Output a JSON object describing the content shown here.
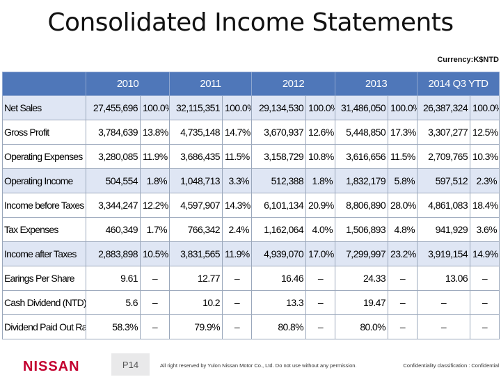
{
  "title": "Consolidated Income Statements",
  "currency": "Currency:K$NTD",
  "columns": [
    "2010",
    "2011",
    "2012",
    "2013",
    "2014 Q3 YTD"
  ],
  "rows": [
    {
      "label": "Net Sales",
      "cells": [
        "27,455,696",
        "100.0%",
        "32,115,351",
        "100.0%",
        "29,134,530",
        "100.0%",
        "31,486,050",
        "100.0%",
        "26,387,324",
        "100.0%"
      ]
    },
    {
      "label": "Gross Profit",
      "cells": [
        "3,784,639",
        "13.8%",
        "4,735,148",
        "14.7%",
        "3,670,937",
        "12.6%",
        "5,448,850",
        "17.3%",
        "3,307,277",
        "12.5%"
      ]
    },
    {
      "label": "Operating Expenses",
      "cells": [
        "3,280,085",
        "11.9%",
        "3,686,435",
        "11.5%",
        "3,158,729",
        "10.8%",
        "3,616,656",
        "11.5%",
        "2,709,765",
        "10.3%"
      ]
    },
    {
      "label": "Operating Income",
      "cells": [
        "504,554",
        "1.8%",
        "1,048,713",
        "3.3%",
        "512,388",
        "1.8%",
        "1,832,179",
        "5.8%",
        "597,512",
        "2.3%"
      ]
    },
    {
      "label": "Income before Taxes",
      "cells": [
        "3,344,247",
        "12.2%",
        "4,597,907",
        "14.3%",
        "6,101,134",
        "20.9%",
        "8,806,890",
        "28.0%",
        "4,861,083",
        "18.4%"
      ]
    },
    {
      "label": "Tax Expenses",
      "cells": [
        "460,349",
        "1.7%",
        "766,342",
        "2.4%",
        "1,162,064",
        "4.0%",
        "1,506,893",
        "4.8%",
        "941,929",
        "3.6%"
      ]
    },
    {
      "label": "Income after Taxes",
      "cells": [
        "2,883,898",
        "10.5%",
        "3,831,565",
        "11.9%",
        "4,939,070",
        "17.0%",
        "7,299,997",
        "23.2%",
        "3,919,154",
        "14.9%"
      ]
    },
    {
      "label": "Earings Per Share",
      "cells": [
        "9.61",
        "–",
        "12.77",
        "–",
        "16.46",
        "–",
        "24.33",
        "–",
        "13.06",
        "–"
      ]
    },
    {
      "label": "Cash Dividend (NTD)",
      "cells": [
        "5.6",
        "–",
        "10.2",
        "–",
        "13.3",
        "–",
        "19.47",
        "–",
        "–",
        "–"
      ]
    },
    {
      "label": "Dividend Paid Out Ratio",
      "cells": [
        "58.3%",
        "–",
        "79.9%",
        "–",
        "80.8%",
        "–",
        "80.0%",
        "–",
        "–",
        "–"
      ]
    }
  ],
  "footer": {
    "logo_text": "NISSAN",
    "page": "P14",
    "copyright": "All right reserved by Yulon Nissan Motor Co., Ltd. Do not use without any permission.",
    "confidentiality": "Confidentiality classification : Confidential"
  }
}
